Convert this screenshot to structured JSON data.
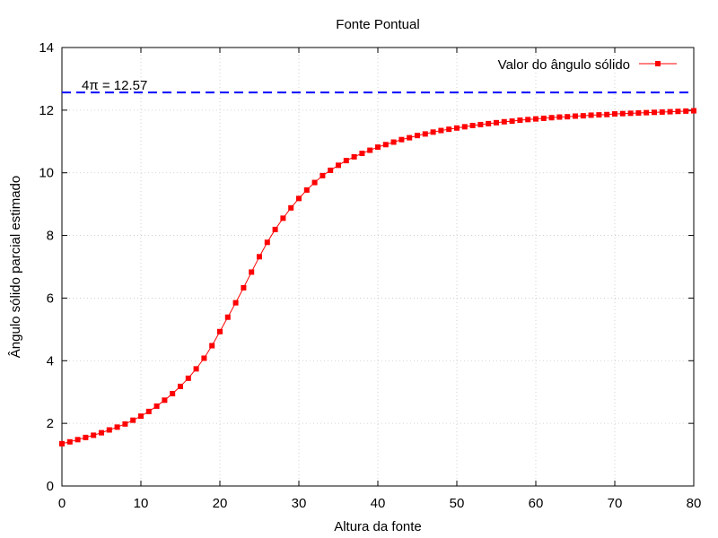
{
  "chart_data": {
    "type": "line",
    "title": "Fonte Pontual",
    "xlabel": "Altura da fonte",
    "ylabel": "Ângulo sólido parcial estimado",
    "xlim": [
      0,
      80
    ],
    "ylim": [
      0,
      14
    ],
    "xticks": [
      0,
      10,
      20,
      30,
      40,
      50,
      60,
      70,
      80
    ],
    "yticks": [
      0,
      2,
      4,
      6,
      8,
      10,
      12,
      14
    ],
    "grid": true,
    "legend_position": "top-right",
    "series": [
      {
        "name": "Valor do ângulo sólido",
        "color": "#ff0000",
        "marker": "square",
        "x": [
          0,
          1,
          2,
          3,
          4,
          5,
          6,
          7,
          8,
          9,
          10,
          11,
          12,
          13,
          14,
          15,
          16,
          17,
          18,
          19,
          20,
          21,
          22,
          23,
          24,
          25,
          26,
          27,
          28,
          29,
          30,
          31,
          32,
          33,
          34,
          35,
          36,
          37,
          38,
          39,
          40,
          41,
          42,
          43,
          44,
          45,
          46,
          47,
          48,
          49,
          50,
          51,
          52,
          53,
          54,
          55,
          56,
          57,
          58,
          59,
          60,
          61,
          62,
          63,
          64,
          65,
          66,
          67,
          68,
          69,
          70,
          71,
          72,
          73,
          74,
          75,
          76,
          77,
          78,
          79,
          80
        ],
        "y": [
          1.35,
          1.41,
          1.48,
          1.55,
          1.62,
          1.7,
          1.79,
          1.88,
          1.98,
          2.1,
          2.23,
          2.38,
          2.55,
          2.74,
          2.95,
          3.18,
          3.44,
          3.74,
          4.08,
          4.48,
          4.93,
          5.39,
          5.85,
          6.33,
          6.83,
          7.32,
          7.78,
          8.19,
          8.55,
          8.88,
          9.18,
          9.45,
          9.69,
          9.91,
          10.08,
          10.24,
          10.39,
          10.51,
          10.62,
          10.72,
          10.82,
          10.9,
          10.98,
          11.06,
          11.12,
          11.19,
          11.24,
          11.3,
          11.35,
          11.39,
          11.43,
          11.47,
          11.51,
          11.54,
          11.57,
          11.6,
          11.63,
          11.65,
          11.68,
          11.7,
          11.72,
          11.74,
          11.76,
          11.78,
          11.79,
          11.81,
          11.82,
          11.84,
          11.85,
          11.86,
          11.88,
          11.89,
          11.9,
          11.91,
          11.92,
          11.93,
          11.94,
          11.95,
          11.96,
          11.97,
          11.98
        ]
      }
    ],
    "reference_line": {
      "y": 12.566,
      "label": "4π = 12.57",
      "color": "#0000ff",
      "style": "dashed"
    }
  }
}
